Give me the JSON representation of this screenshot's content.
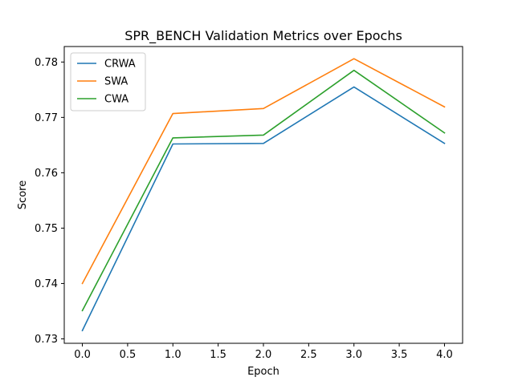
{
  "chart_data": {
    "type": "line",
    "title": "SPR_BENCH Validation Metrics over Epochs",
    "xlabel": "Epoch",
    "ylabel": "Score",
    "x": [
      0,
      1,
      2,
      3,
      4
    ],
    "xlim": [
      -0.2,
      4.2
    ],
    "ylim": [
      0.7292,
      0.7828
    ],
    "xticks": [
      0.0,
      0.5,
      1.0,
      1.5,
      2.0,
      2.5,
      3.0,
      3.5,
      4.0
    ],
    "xtick_labels": [
      "0.0",
      "0.5",
      "1.0",
      "1.5",
      "2.0",
      "2.5",
      "3.0",
      "3.5",
      "4.0"
    ],
    "yticks": [
      0.73,
      0.74,
      0.75,
      0.76,
      0.77,
      0.78
    ],
    "ytick_labels": [
      "0.73",
      "0.74",
      "0.75",
      "0.76",
      "0.77",
      "0.78"
    ],
    "grid": false,
    "legend_position": "top-left",
    "series": [
      {
        "name": "CRWA",
        "color": "#1f77b4",
        "values": [
          0.7315,
          0.7652,
          0.7653,
          0.7755,
          0.7653
        ]
      },
      {
        "name": "SWA",
        "color": "#ff7f0e",
        "values": [
          0.74,
          0.7707,
          0.7716,
          0.7806,
          0.7719
        ]
      },
      {
        "name": "CWA",
        "color": "#2ca02c",
        "values": [
          0.7351,
          0.7663,
          0.7668,
          0.7785,
          0.7672
        ]
      }
    ]
  }
}
